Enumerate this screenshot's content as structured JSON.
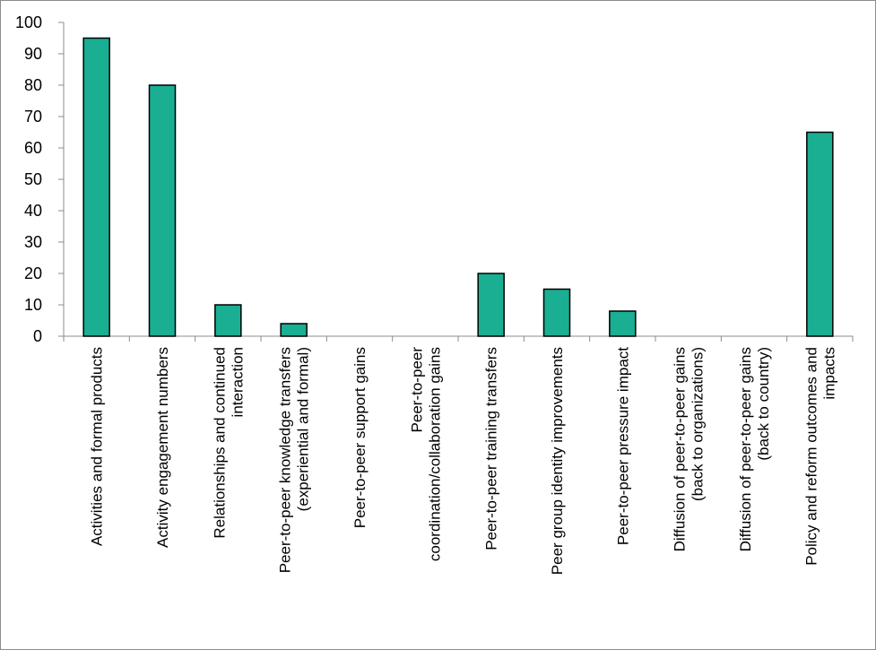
{
  "chart_data": {
    "type": "bar",
    "title": "",
    "xlabel": "",
    "ylabel": "",
    "ylim": [
      0,
      100
    ],
    "yticks": [
      0,
      10,
      20,
      30,
      40,
      50,
      60,
      70,
      80,
      90,
      100
    ],
    "grid": false,
    "bar_color": "#1aae93",
    "bar_edge_color": "#000000",
    "categories": [
      [
        "Activities and formal products"
      ],
      [
        "Activity engagement numbers"
      ],
      [
        "Relationships and continued",
        "interaction"
      ],
      [
        "Peer-to-peer knowledge transfers",
        "(experiential and formal)"
      ],
      [
        "Peer-to-peer support gains"
      ],
      [
        "Peer-to-peer",
        "coordination/collaboration gains"
      ],
      [
        "Peer-to-peer training transfers"
      ],
      [
        "Peer group identity improvements"
      ],
      [
        "Peer-to-peer pressure impact"
      ],
      [
        "Diffusion of peer-to-peer gains",
        "(back to organizations)"
      ],
      [
        "Diffusion of peer-to-peer gains",
        "(back to country)"
      ],
      [
        "Policy and reform outcomes and",
        "impacts"
      ]
    ],
    "values": [
      95,
      80,
      10,
      4,
      0,
      0,
      20,
      15,
      8,
      0,
      0,
      65
    ]
  }
}
